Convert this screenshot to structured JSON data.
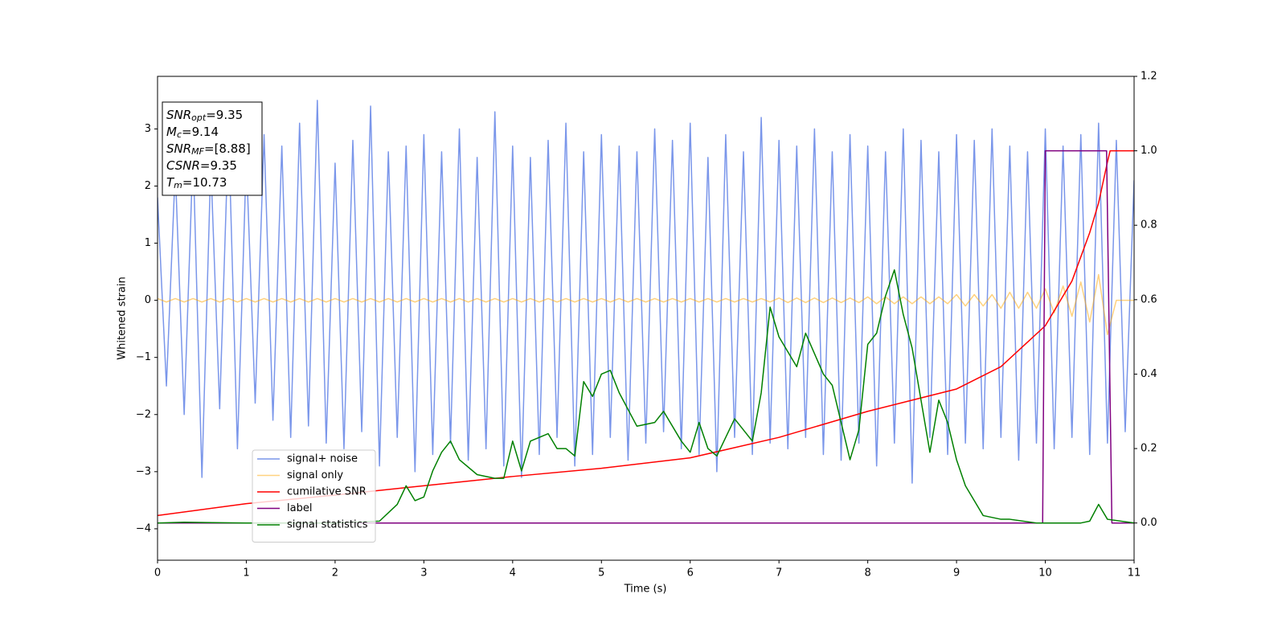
{
  "chart_data": {
    "type": "line",
    "xlabel": "Time (s)",
    "ylabel": "Whitened strain",
    "xlim": [
      0,
      11
    ],
    "xticks": [
      0,
      1,
      2,
      3,
      4,
      5,
      6,
      7,
      8,
      9,
      10,
      11
    ],
    "ylim": [
      -4.55,
      3.92
    ],
    "yticks": [
      {
        "value": -4,
        "label": "−4"
      },
      {
        "value": -3,
        "label": "−3"
      },
      {
        "value": -2,
        "label": "−2"
      },
      {
        "value": -1,
        "label": "−1"
      },
      0,
      1,
      2,
      3
    ],
    "y2lim": [
      -0.1,
      1.2
    ],
    "y2ticks": [
      {
        "value": 0,
        "label": "0.0"
      },
      {
        "value": 0.2,
        "label": "0.2"
      },
      {
        "value": 0.4,
        "label": "0.4"
      },
      {
        "value": 0.6,
        "label": "0.6"
      },
      {
        "value": 0.8,
        "label": "0.8"
      },
      {
        "value": 1,
        "label": "1.0"
      },
      {
        "value": 1.2,
        "label": "1.2"
      }
    ],
    "legend": "lower left",
    "annotations": [
      {
        "main": "SNR",
        "sub": "opt",
        "rest": "=9.35"
      },
      {
        "main": "M",
        "sub": "c",
        "rest": "=9.14"
      },
      {
        "main": "SNR",
        "sub": "MF",
        "rest": "=[8.88]"
      },
      {
        "main": "CSNR",
        "sub": "",
        "rest": "=9.35"
      },
      {
        "main": "T",
        "sub": "m",
        "rest": "=10.73"
      }
    ],
    "x": [
      0,
      0.1,
      0.2,
      0.3,
      0.4,
      0.5,
      0.6,
      0.7,
      0.8,
      0.9,
      1,
      1.1,
      1.2,
      1.3,
      1.4,
      1.5,
      1.6,
      1.7,
      1.8,
      1.9,
      2,
      2.1,
      2.2,
      2.3,
      2.4,
      2.5,
      2.6,
      2.7,
      2.8,
      2.9,
      3,
      3.1,
      3.2,
      3.3,
      3.4,
      3.5,
      3.6,
      3.7,
      3.8,
      3.9,
      4,
      4.1,
      4.2,
      4.3,
      4.4,
      4.5,
      4.6,
      4.7,
      4.8,
      4.9,
      5,
      5.1,
      5.2,
      5.3,
      5.4,
      5.5,
      5.6,
      5.7,
      5.8,
      5.9,
      6,
      6.1,
      6.2,
      6.3,
      6.4,
      6.5,
      6.6,
      6.7,
      6.8,
      6.9,
      7,
      7.1,
      7.2,
      7.3,
      7.4,
      7.5,
      7.6,
      7.7,
      7.8,
      7.9,
      8,
      8.1,
      8.2,
      8.3,
      8.4,
      8.5,
      8.6,
      8.7,
      8.8,
      8.9,
      9,
      9.1,
      9.2,
      9.3,
      9.4,
      9.5,
      9.6,
      9.7,
      9.8,
      9.9,
      10,
      10.1,
      10.2,
      10.3,
      10.4,
      10.5,
      10.6,
      10.7,
      10.8,
      10.9,
      11
    ],
    "series": [
      {
        "name": "signal+ noise",
        "color": "#4169e1",
        "opacity": 0.7,
        "values": [
          1.8,
          -1.5,
          2.3,
          -2.0,
          2.6,
          -3.1,
          2.4,
          -1.9,
          3.0,
          -2.6,
          2.5,
          -1.8,
          2.9,
          -2.1,
          2.7,
          -2.4,
          3.1,
          -2.2,
          3.5,
          -2.5,
          2.4,
          -2.6,
          2.8,
          -2.3,
          3.4,
          -2.9,
          2.6,
          -2.4,
          2.7,
          -3.0,
          2.9,
          -2.7,
          2.6,
          -2.5,
          3.0,
          -2.8,
          2.5,
          -2.6,
          3.3,
          -2.9,
          2.7,
          -3.1,
          2.5,
          -2.7,
          2.8,
          -2.4,
          3.1,
          -2.9,
          2.6,
          -2.7,
          2.9,
          -2.4,
          2.7,
          -2.8,
          2.6,
          -2.5,
          3.0,
          -2.3,
          2.8,
          -2.6,
          3.1,
          -2.7,
          2.5,
          -3.0,
          2.9,
          -2.4,
          2.6,
          -2.7,
          3.2,
          -2.5,
          2.8,
          -2.6,
          2.7,
          -2.4,
          3.0,
          -2.7,
          2.6,
          -2.8,
          2.9,
          -2.5,
          2.7,
          -2.9,
          2.6,
          -2.5,
          3.0,
          -3.2,
          2.8,
          -2.4,
          2.6,
          -2.7,
          2.9,
          -2.5,
          2.8,
          -2.6,
          3.0,
          -2.4,
          2.7,
          -2.8,
          2.6,
          -2.5,
          3.0,
          -2.6,
          2.7,
          -2.4,
          2.9,
          -2.7,
          3.1,
          -2.5,
          2.8,
          -2.3,
          2.1
        ]
      },
      {
        "name": "signal only",
        "color": "#ffa500",
        "opacity": 0.5,
        "values": [
          0.03,
          -0.03,
          0.03,
          -0.03,
          0.03,
          -0.03,
          0.03,
          -0.03,
          0.03,
          -0.03,
          0.03,
          -0.03,
          0.03,
          -0.03,
          0.03,
          -0.03,
          0.03,
          -0.03,
          0.03,
          -0.03,
          0.03,
          -0.03,
          0.03,
          -0.03,
          0.03,
          -0.03,
          0.03,
          -0.03,
          0.03,
          -0.03,
          0.03,
          -0.03,
          0.03,
          -0.03,
          0.03,
          -0.03,
          0.03,
          -0.03,
          0.03,
          -0.03,
          0.03,
          -0.03,
          0.03,
          -0.03,
          0.03,
          -0.03,
          0.03,
          -0.03,
          0.03,
          -0.03,
          0.03,
          -0.03,
          0.03,
          -0.03,
          0.03,
          -0.03,
          0.03,
          -0.03,
          0.03,
          -0.03,
          0.03,
          -0.03,
          0.03,
          -0.03,
          0.03,
          -0.03,
          0.03,
          -0.03,
          0.03,
          -0.03,
          0.04,
          -0.04,
          0.04,
          -0.04,
          0.04,
          -0.04,
          0.04,
          -0.04,
          0.04,
          -0.04,
          0.06,
          -0.06,
          0.06,
          -0.06,
          0.06,
          -0.06,
          0.06,
          -0.06,
          0.06,
          -0.06,
          0.1,
          -0.1,
          0.1,
          -0.1,
          0.1,
          -0.14,
          0.14,
          -0.14,
          0.14,
          -0.14,
          0.2,
          -0.22,
          0.25,
          -0.28,
          0.32,
          -0.38,
          0.45,
          -0.6,
          0,
          0,
          0
        ]
      },
      {
        "name": "cumilative SNR",
        "color": "#ff0000",
        "axis": "y2",
        "x": [
          0,
          1,
          2,
          3,
          4,
          5,
          6,
          7,
          8,
          9,
          9.5,
          10,
          10.3,
          10.5,
          10.6,
          10.7,
          10.73,
          11
        ],
        "values": [
          0.02,
          0.052,
          0.075,
          0.1,
          0.125,
          0.147,
          0.175,
          0.23,
          0.3,
          0.36,
          0.42,
          0.53,
          0.65,
          0.78,
          0.86,
          0.97,
          1,
          1
        ]
      },
      {
        "name": "label",
        "color": "#800080",
        "axis": "y2",
        "x": [
          0,
          9.97,
          10,
          10.69,
          10.75,
          11
        ],
        "values": [
          0,
          0,
          1,
          1,
          0,
          0
        ]
      },
      {
        "name": "signal statistics",
        "color": "#008000",
        "axis": "y2",
        "x": [
          0,
          0.3,
          1,
          2,
          2.5,
          2.7,
          2.8,
          2.9,
          3,
          3.1,
          3.2,
          3.3,
          3.4,
          3.6,
          3.8,
          3.9,
          4,
          4.1,
          4.2,
          4.4,
          4.5,
          4.6,
          4.7,
          4.8,
          4.9,
          5,
          5.1,
          5.2,
          5.4,
          5.6,
          5.7,
          5.9,
          6,
          6.1,
          6.2,
          6.3,
          6.5,
          6.7,
          6.8,
          6.9,
          7,
          7.2,
          7.3,
          7.5,
          7.6,
          7.8,
          7.9,
          8,
          8.1,
          8.2,
          8.3,
          8.4,
          8.5,
          8.7,
          8.8,
          8.9,
          9,
          9.1,
          9.3,
          9.5,
          9.6,
          9.9,
          10.4,
          10.5,
          10.6,
          10.7,
          11
        ],
        "values": [
          0,
          0.002,
          0,
          0,
          0.005,
          0.05,
          0.1,
          0.06,
          0.07,
          0.14,
          0.19,
          0.22,
          0.17,
          0.13,
          0.12,
          0.12,
          0.22,
          0.14,
          0.22,
          0.24,
          0.2,
          0.2,
          0.18,
          0.38,
          0.34,
          0.4,
          0.41,
          0.35,
          0.26,
          0.27,
          0.3,
          0.22,
          0.19,
          0.27,
          0.2,
          0.18,
          0.28,
          0.22,
          0.35,
          0.58,
          0.5,
          0.42,
          0.51,
          0.4,
          0.37,
          0.17,
          0.25,
          0.48,
          0.51,
          0.61,
          0.68,
          0.56,
          0.47,
          0.19,
          0.33,
          0.27,
          0.17,
          0.1,
          0.02,
          0.01,
          0.01,
          0,
          0,
          0.005,
          0.05,
          0.01,
          0
        ]
      }
    ]
  }
}
